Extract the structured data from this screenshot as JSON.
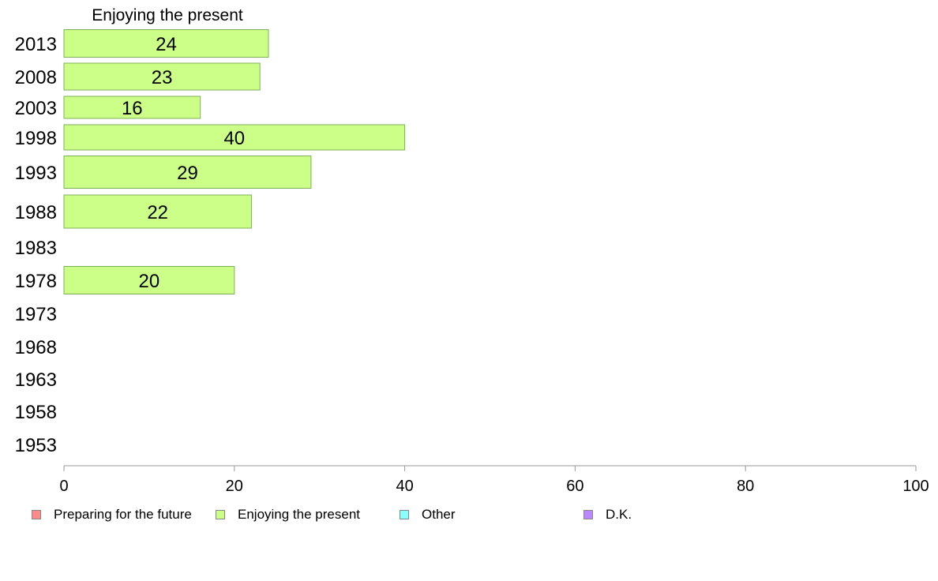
{
  "chart_data": {
    "type": "bar",
    "orientation": "horizontal",
    "title": "Enjoying the present",
    "categories": [
      "2013",
      "2008",
      "2003",
      "1998",
      "1993",
      "1988",
      "1983",
      "1978",
      "1973",
      "1968",
      "1963",
      "1958",
      "1953"
    ],
    "series": [
      {
        "name": "Enjoying the present",
        "color": "#ccff88",
        "values": [
          24,
          23,
          16,
          40,
          29,
          22,
          null,
          20,
          null,
          null,
          null,
          null,
          null
        ]
      }
    ],
    "data_labels": [
      "24",
      "23",
      "16",
      "40",
      "29",
      "22",
      "",
      "20",
      "",
      "",
      "",
      "",
      ""
    ],
    "xlim": [
      0,
      100
    ],
    "xticks": [
      "0",
      "20",
      "40",
      "60",
      "80",
      "100"
    ],
    "grid": false
  },
  "legend": {
    "items": [
      {
        "label": "Preparing for the future",
        "color": "#ff8888"
      },
      {
        "label": "Enjoying the present",
        "color": "#ccff88"
      },
      {
        "label": "Other",
        "color": "#88ffff"
      },
      {
        "label": "D.K.",
        "color": "#bb88ff"
      }
    ]
  }
}
